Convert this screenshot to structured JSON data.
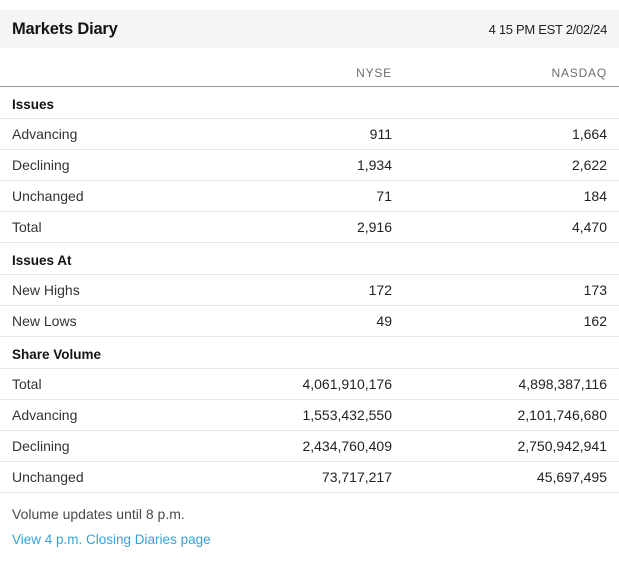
{
  "header": {
    "title": "Markets Diary",
    "timestamp": "4 15 PM EST 2/02/24"
  },
  "columns": {
    "nyse": "NYSE",
    "nasdaq": "NASDAQ"
  },
  "sections": [
    {
      "title": "Issues",
      "rows": [
        {
          "label": "Advancing",
          "nyse": "911",
          "nasdaq": "1,664"
        },
        {
          "label": "Declining",
          "nyse": "1,934",
          "nasdaq": "2,622"
        },
        {
          "label": "Unchanged",
          "nyse": "71",
          "nasdaq": "184"
        },
        {
          "label": "Total",
          "nyse": "2,916",
          "nasdaq": "4,470"
        }
      ]
    },
    {
      "title": "Issues At",
      "rows": [
        {
          "label": "New Highs",
          "nyse": "172",
          "nasdaq": "173"
        },
        {
          "label": "New Lows",
          "nyse": "49",
          "nasdaq": "162"
        }
      ]
    },
    {
      "title": "Share Volume",
      "rows": [
        {
          "label": "Total",
          "nyse": "4,061,910,176",
          "nasdaq": "4,898,387,116"
        },
        {
          "label": "Advancing",
          "nyse": "1,553,432,550",
          "nasdaq": "2,101,746,680"
        },
        {
          "label": "Declining",
          "nyse": "2,434,760,409",
          "nasdaq": "2,750,942,941"
        },
        {
          "label": "Unchanged",
          "nyse": "73,717,217",
          "nasdaq": "45,697,495"
        }
      ]
    }
  ],
  "footer": {
    "note": "Volume updates until 8 p.m.",
    "link": "View 4 p.m. Closing Diaries page"
  },
  "colors": {
    "header_bg": "#f5f5f5",
    "link": "#38a1dc",
    "divider": "#e6e6e6",
    "header_divider": "#979797"
  }
}
